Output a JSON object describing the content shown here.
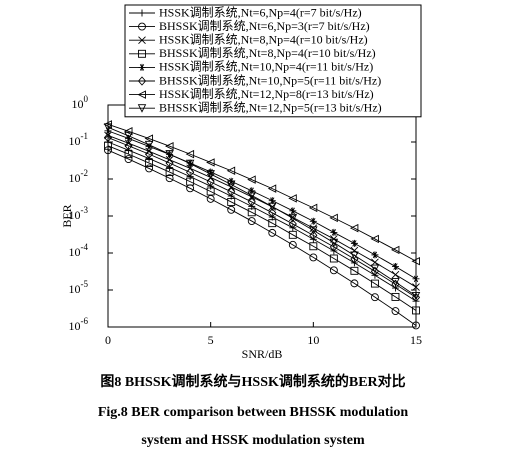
{
  "chart_data": {
    "type": "line",
    "log_y": true,
    "x_label": "SNR/dB",
    "y_label": "BER",
    "x": [
      0,
      1,
      2,
      3,
      4,
      5,
      6,
      7,
      8,
      9,
      10,
      11,
      12,
      13,
      14,
      15
    ],
    "xlim": [
      0,
      15
    ],
    "xticks": [
      0,
      5,
      10,
      15
    ],
    "ylim": [
      1e-06,
      1
    ],
    "yticks": [
      {
        "value": 1,
        "label": "10",
        "exp": "0"
      },
      {
        "value": 0.1,
        "label": "10",
        "exp": "-1"
      },
      {
        "value": 0.01,
        "label": "10",
        "exp": "-2"
      },
      {
        "value": 0.001,
        "label": "10",
        "exp": "-3"
      },
      {
        "value": 0.0001,
        "label": "10",
        "exp": "-4"
      },
      {
        "value": 1e-05,
        "label": "10",
        "exp": "-5"
      },
      {
        "value": 1e-06,
        "label": "10",
        "exp": "-6"
      }
    ],
    "legend": "top-right",
    "series": [
      {
        "name": "HSSK调制系统,Nt=6,Np=4(r=7 bit/s/Hz)",
        "color": "#000000",
        "marker": "plus",
        "values": [
          0.1,
          0.06,
          0.0356,
          0.0205,
          0.0116,
          0.0064,
          0.00345,
          0.00182,
          0.00094,
          0.00048,
          0.000235,
          0.000114,
          5.4e-05,
          2.5e-05,
          1.13e-05,
          5e-06
        ]
      },
      {
        "name": "BHSSK调制系统,Nt=6,Np=3(r=7 bit/s/Hz)",
        "color": "#000000",
        "marker": "circle",
        "values": [
          0.06,
          0.0345,
          0.0193,
          0.0105,
          0.0056,
          0.0029,
          0.00147,
          0.00073,
          0.00035,
          0.000166,
          7.6e-05,
          3.4e-05,
          1.51e-05,
          6.4e-06,
          2.7e-06,
          1.1e-06
        ]
      },
      {
        "name": "HSSK调制系统,Nt=8,Np=4(r=10 bit/s/Hz)",
        "color": "#000000",
        "marker": "x",
        "values": [
          0.15,
          0.093,
          0.056,
          0.033,
          0.0194,
          0.011,
          0.0061,
          0.0033,
          0.00177,
          0.00092,
          0.00047,
          0.00024,
          0.000116,
          5.6e-05,
          2.6e-05,
          1.2e-05
        ]
      },
      {
        "name": "BHSSK调制系统,Nt=8,Np=4(r=10 bit/s/Hz)",
        "color": "#000000",
        "marker": "square",
        "values": [
          0.079,
          0.047,
          0.027,
          0.0154,
          0.0085,
          0.0046,
          0.0024,
          0.00126,
          0.00064,
          0.00031,
          0.000152,
          7.1e-05,
          3.3e-05,
          1.49e-05,
          6.5e-06,
          2.8e-06
        ]
      },
      {
        "name": "HSSK调制系统,Nt=10,Np=4(r=11 bit/s/Hz)",
        "color": "#000000",
        "marker": "star",
        "values": [
          0.2,
          0.125,
          0.076,
          0.046,
          0.027,
          0.0155,
          0.0087,
          0.0048,
          0.0026,
          0.00138,
          0.00072,
          0.00036,
          0.000182,
          8.9e-05,
          4.3e-05,
          2e-05
        ]
      },
      {
        "name": "BHSSK调制系统,Nt=10,Np=5(r=11 bit/s/Hz)",
        "color": "#000000",
        "marker": "diamond",
        "values": [
          0.132,
          0.079,
          0.047,
          0.027,
          0.0151,
          0.0083,
          0.0045,
          0.0024,
          0.00122,
          0.00061,
          0.0003,
          0.000146,
          6.9e-05,
          3.2e-05,
          1.43e-05,
          6.3e-06
        ]
      },
      {
        "name": "HSSK调制系统,Nt=12,Np=8(r=13 bit/s/Hz)",
        "color": "#000000",
        "marker": "triangle-left",
        "values": [
          0.3,
          0.195,
          0.124,
          0.077,
          0.047,
          0.028,
          0.0167,
          0.0096,
          0.0055,
          0.003,
          0.00166,
          0.00089,
          0.00047,
          0.00024,
          0.000121,
          6e-05
        ]
      },
      {
        "name": "BHSSK调制系统,Nt=12,Np=5(r=13 bit/s/Hz)",
        "color": "#000000",
        "marker": "triangle-down",
        "values": [
          0.25,
          0.147,
          0.084,
          0.047,
          0.026,
          0.0136,
          0.0071,
          0.0036,
          0.00179,
          0.00087,
          0.00041,
          0.00019,
          8.6e-05,
          3.8e-05,
          1.64e-05,
          6.9e-06
        ]
      }
    ],
    "caption_cn": "图8 BHSSK调制系统与HSSK调制系统的BER对比",
    "caption_en": [
      "Fig.8 BER comparison between BHSSK modulation",
      "system and HSSK modulation system"
    ]
  }
}
